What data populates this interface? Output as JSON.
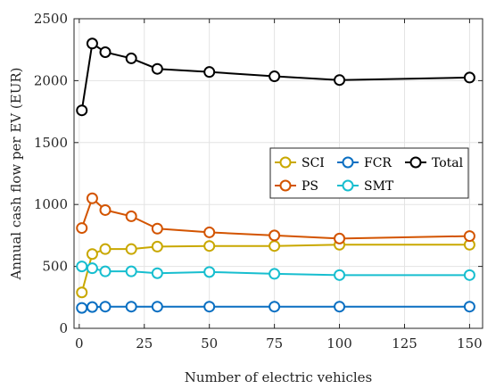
{
  "chart_data": {
    "type": "line",
    "xlabel": "Number of electric vehicles",
    "ylabel": "Annual cash flow per EV (EUR)",
    "xlim": [
      -2,
      155
    ],
    "ylim": [
      0,
      2500
    ],
    "xticks": [
      0,
      25,
      50,
      75,
      100,
      125,
      150
    ],
    "yticks": [
      0,
      500,
      1000,
      1500,
      2000,
      2500
    ],
    "grid": true,
    "legend_position": "center-right",
    "x": [
      1,
      5,
      10,
      20,
      30,
      50,
      75,
      100,
      150
    ],
    "series": [
      {
        "name": "SCI",
        "color": "#C9A800",
        "values": [
          290,
          600,
          640,
          640,
          660,
          665,
          665,
          675,
          675
        ]
      },
      {
        "name": "FCR",
        "color": "#0A6FC2",
        "values": [
          165,
          172,
          175,
          175,
          175,
          175,
          175,
          175,
          175
        ]
      },
      {
        "name": "Total",
        "color": "#000000",
        "values": [
          1760,
          2300,
          2230,
          2180,
          2095,
          2070,
          2035,
          2005,
          2025
        ]
      },
      {
        "name": "PS",
        "color": "#D35400",
        "values": [
          810,
          1050,
          955,
          905,
          805,
          775,
          750,
          725,
          745
        ]
      },
      {
        "name": "SMT",
        "color": "#17BECF",
        "values": [
          500,
          485,
          460,
          460,
          445,
          455,
          440,
          430,
          430
        ]
      }
    ]
  }
}
